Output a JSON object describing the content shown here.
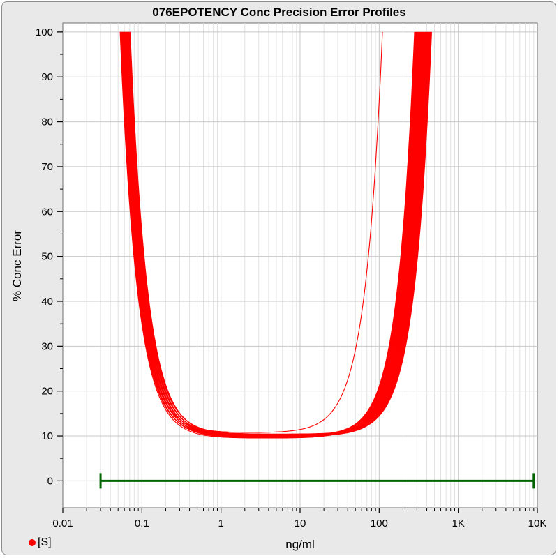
{
  "colors": {
    "curve": "#ff0000",
    "range_bar": "#006400",
    "grid_major": "#c8c8c8",
    "grid_minor": "#e2e2e2",
    "frame_bg": "#e9e9e9",
    "plot_bg": "#ffffff"
  },
  "legend": {
    "label": "[S]",
    "marker_color": "#ff0000"
  },
  "chart_data": {
    "type": "line",
    "title": "076EPOTENCY Conc Precision Error Profiles",
    "xlabel": "ng/ml",
    "ylabel": "% Conc Error",
    "xscale": "log",
    "xlim": [
      0.01,
      10000
    ],
    "ylim": [
      -6,
      102
    ],
    "grid": true,
    "x_ticks": [
      {
        "value": 0.01,
        "label": "0.01"
      },
      {
        "value": 0.1,
        "label": "0.1"
      },
      {
        "value": 1,
        "label": "1"
      },
      {
        "value": 10,
        "label": "10"
      },
      {
        "value": 100,
        "label": "100"
      },
      {
        "value": 1000,
        "label": "1K"
      },
      {
        "value": 10000,
        "label": "10K"
      }
    ],
    "y_ticks": [
      {
        "value": 0,
        "label": "0"
      },
      {
        "value": 10,
        "label": "10"
      },
      {
        "value": 20,
        "label": "20"
      },
      {
        "value": 30,
        "label": "30"
      },
      {
        "value": 40,
        "label": "40"
      },
      {
        "value": 50,
        "label": "50"
      },
      {
        "value": 60,
        "label": "60"
      },
      {
        "value": 70,
        "label": "70"
      },
      {
        "value": 80,
        "label": "80"
      },
      {
        "value": 90,
        "label": "90"
      },
      {
        "value": 100,
        "label": "100"
      }
    ],
    "range_bar": {
      "x_start": 0.03,
      "x_end": 9000,
      "y": 0
    },
    "profile_family": {
      "count": 42,
      "left_x_at_100": [
        0.053,
        0.071
      ],
      "right_x_at_100": [
        280,
        460
      ],
      "min_error": [
        9.5,
        10.5
      ],
      "min_x": [
        5.5,
        9.0
      ],
      "outlier": {
        "left_x_at_100": 0.055,
        "right_x_at_100": 110,
        "min_error": 10.7,
        "min_x": 3.3
      }
    }
  }
}
